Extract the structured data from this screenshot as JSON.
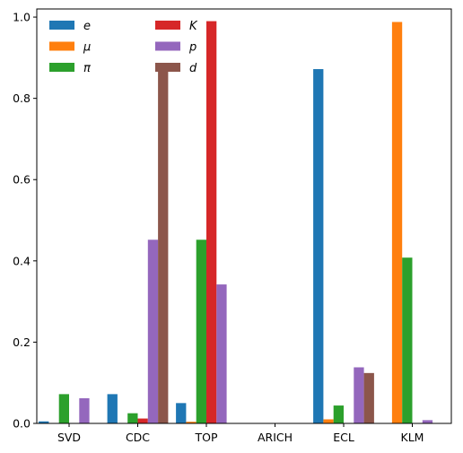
{
  "chart_data": {
    "type": "bar",
    "categories": [
      "SVD",
      "CDC",
      "TOP",
      "ARICH",
      "ECL",
      "KLM"
    ],
    "series": [
      {
        "name": "e",
        "color": "#1f77b4",
        "values": [
          0.005,
          0.072,
          0.05,
          0.0,
          0.872,
          0.0
        ]
      },
      {
        "name": "μ",
        "color": "#ff7f0e",
        "values": [
          0.0,
          0.0,
          0.004,
          0.0,
          0.01,
          0.988
        ]
      },
      {
        "name": "π",
        "color": "#2ca02c",
        "values": [
          0.072,
          0.025,
          0.452,
          0.0,
          0.044,
          0.408
        ]
      },
      {
        "name": "K",
        "color": "#d62728",
        "values": [
          0.0,
          0.012,
          0.99,
          0.0,
          0.0,
          0.0
        ]
      },
      {
        "name": "p",
        "color": "#9467bd",
        "values": [
          0.062,
          0.452,
          0.342,
          0.0,
          0.138,
          0.008
        ]
      },
      {
        "name": "d",
        "color": "#8c564b",
        "values": [
          0.0,
          0.878,
          0.0,
          0.0,
          0.124,
          0.0
        ]
      }
    ],
    "ylim": [
      0,
      1.02
    ],
    "yticks": [
      "0.0",
      "0.2",
      "0.4",
      "0.6",
      "0.8",
      "1.0"
    ],
    "ytick_values": [
      0.0,
      0.2,
      0.4,
      0.6,
      0.8,
      1.0
    ],
    "xlabel": "",
    "ylabel": "",
    "title": "",
    "legend_position": "top-left",
    "legend_columns": 2,
    "grid": false
  }
}
